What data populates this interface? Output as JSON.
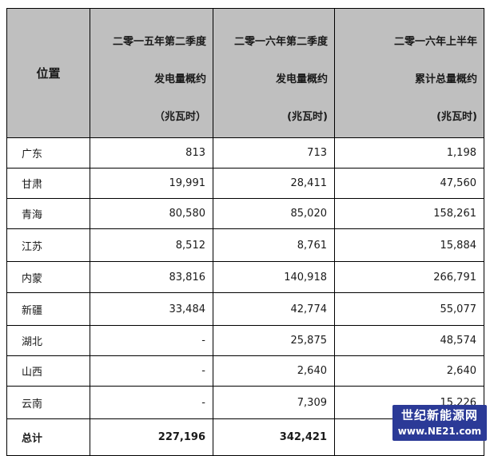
{
  "table": {
    "header": {
      "position": "位置",
      "col1": [
        "二零一五年第二季度",
        "发电量概约",
        "（兆瓦时）"
      ],
      "col2": [
        "二零一六年第二季度",
        "发电量概约",
        "(兆瓦时)"
      ],
      "col3": [
        "二零一六年上半年",
        "累计总量概约",
        "(兆瓦时)"
      ]
    },
    "rows": [
      {
        "region": "广东",
        "q2_2015": "813",
        "q2_2016": "713",
        "h1_2016": "1,198"
      },
      {
        "region": "甘肃",
        "q2_2015": "19,991",
        "q2_2016": "28,411",
        "h1_2016": "47,560"
      },
      {
        "region": "青海",
        "q2_2015": "80,580",
        "q2_2016": "85,020",
        "h1_2016": "158,261"
      },
      {
        "region": "江苏",
        "q2_2015": "8,512",
        "q2_2016": "8,761",
        "h1_2016": "15,884"
      },
      {
        "region": "内蒙",
        "q2_2015": "83,816",
        "q2_2016": "140,918",
        "h1_2016": "266,791"
      },
      {
        "region": "新疆",
        "q2_2015": "33,484",
        "q2_2016": "42,774",
        "h1_2016": "55,077"
      },
      {
        "region": "湖北",
        "q2_2015": "-",
        "q2_2016": "25,875",
        "h1_2016": "48,574"
      },
      {
        "region": "山西",
        "q2_2015": "-",
        "q2_2016": "2,640",
        "h1_2016": "2,640"
      },
      {
        "region": "云南",
        "q2_2015": "-",
        "q2_2016": "7,309",
        "h1_2016": "15,226"
      }
    ],
    "total": {
      "label": "总计",
      "q2_2015": "227,196",
      "q2_2016": "342,421",
      "h1_2016": ""
    }
  },
  "watermark": {
    "line1": "世纪新能源网",
    "line2": "www.NE21.com"
  },
  "colors": {
    "header_bg": "#bfbfbf",
    "watermark_bg": "#2b3a97"
  }
}
